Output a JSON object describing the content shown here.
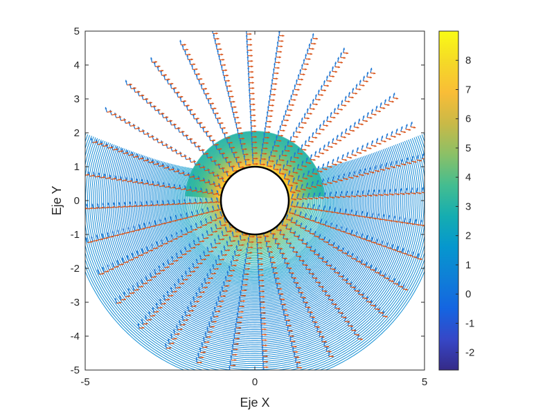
{
  "chart_data": [
    {
      "type": "contour",
      "xlabel": "Eje X",
      "ylabel": "Eje Y",
      "xlim": [
        -5,
        5
      ],
      "ylim": [
        -5,
        5
      ],
      "xticks": [
        -5,
        0,
        5
      ],
      "yticks": [
        -5,
        -4,
        -3,
        -2,
        -1,
        0,
        1,
        2,
        3,
        4,
        5
      ],
      "xtick_labels": [
        "-5",
        "0",
        "5"
      ],
      "ytick_labels": [
        "-5",
        "-4",
        "-3",
        "-2",
        "-1",
        "0",
        "1",
        "2",
        "3",
        "4",
        "5"
      ],
      "obstacle": {
        "shape": "circle",
        "center": [
          0,
          0
        ],
        "radius": 1
      },
      "contour_lines": {
        "count": 120,
        "radial_range": [
          1,
          5
        ],
        "description_key": "flow around cylinder"
      },
      "vector_fields": [
        {
          "name": "",
          "color": "#1f77d4",
          "radial_rays": 32
        },
        {
          "name": "",
          "color": "#d95319",
          "radial_rays": 32
        }
      ],
      "colorbar": {
        "colormap": "parula",
        "clim": [
          -2.6,
          9
        ],
        "ticks": [
          -2,
          -1,
          0,
          1,
          2,
          3,
          4,
          5,
          6,
          7,
          8
        ],
        "tick_labels": [
          "-2",
          "-1",
          "0",
          "1",
          "2",
          "3",
          "4",
          "5",
          "6",
          "7",
          "8"
        ]
      },
      "grid": false,
      "legend": "none"
    }
  ]
}
